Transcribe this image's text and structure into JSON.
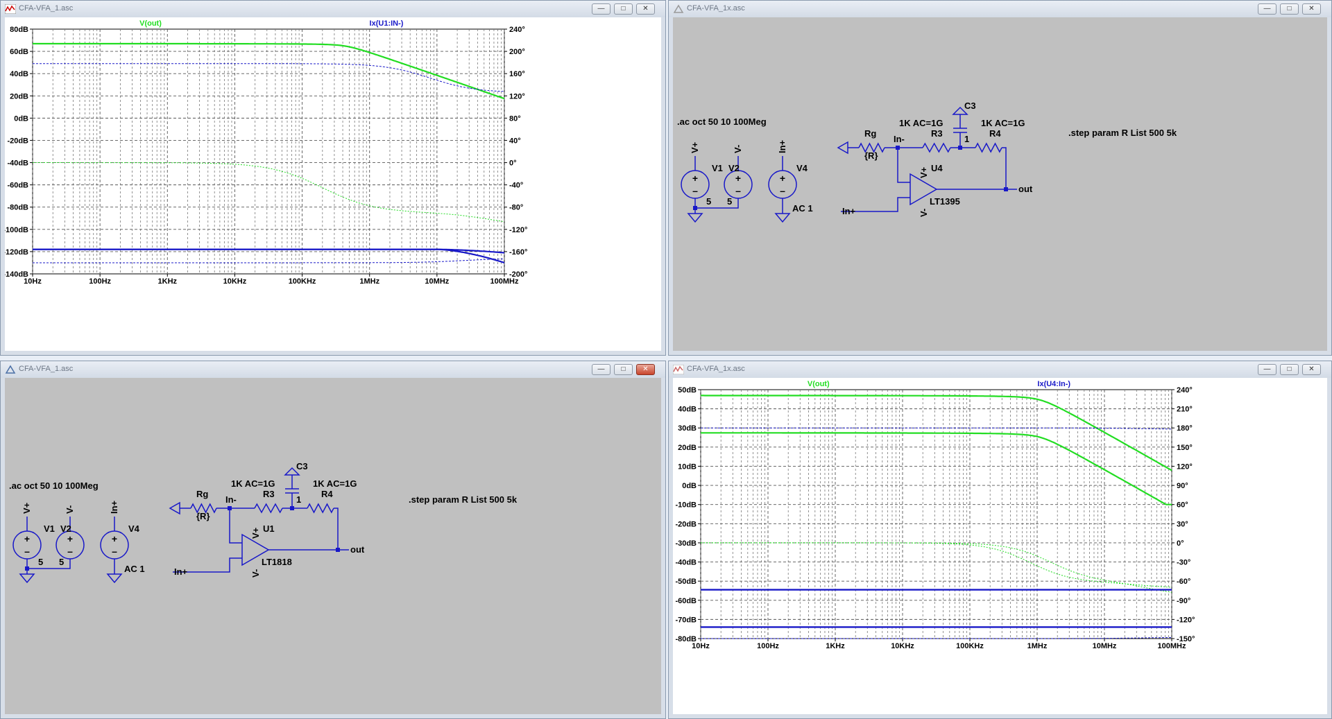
{
  "windows": {
    "top_left": {
      "title": "CFA-VFA_1.asc"
    },
    "top_right": {
      "title": "CFA-VFA_1x.asc"
    },
    "bottom_left": {
      "title": "CFA-VFA_1.asc"
    },
    "bottom_right": {
      "title": "CFA-VFA_1x.asc"
    }
  },
  "plot1": {
    "trace_vout": "V(out)",
    "trace_ix": "Ix(U1:IN-)",
    "y_labels": [
      "80dB",
      "60dB",
      "40dB",
      "20dB",
      "0dB",
      "-20dB",
      "-40dB",
      "-60dB",
      "-80dB",
      "-100dB",
      "-120dB",
      "-140dB"
    ],
    "phase_labels": [
      "240°",
      "200°",
      "160°",
      "120°",
      "80°",
      "40°",
      "0°",
      "-40°",
      "-80°",
      "-120°",
      "-160°",
      "-200°"
    ],
    "x_labels": [
      "10Hz",
      "100Hz",
      "1KHz",
      "10KHz",
      "100KHz",
      "1MHz",
      "10MHz",
      "100MHz"
    ],
    "ylim": [
      -140,
      80
    ],
    "phase_lim": [
      -200,
      240
    ]
  },
  "plot2": {
    "trace_vout": "V(out)",
    "trace_ix": "Ix(U4:In-)",
    "y_labels": [
      "50dB",
      "40dB",
      "30dB",
      "20dB",
      "10dB",
      "0dB",
      "-10dB",
      "-20dB",
      "-30dB",
      "-40dB",
      "-50dB",
      "-60dB",
      "-70dB",
      "-80dB"
    ],
    "phase_labels": [
      "240°",
      "210°",
      "180°",
      "150°",
      "120°",
      "90°",
      "60°",
      "30°",
      "0°",
      "-30°",
      "-60°",
      "-90°",
      "-120°",
      "-150°"
    ],
    "x_labels": [
      "10Hz",
      "100Hz",
      "1KHz",
      "10KHz",
      "100KHz",
      "1MHz",
      "10MHz",
      "100MHz"
    ],
    "ylim": [
      -80,
      50
    ],
    "phase_lim": [
      -150,
      240
    ]
  },
  "schem_top": {
    "ac": ".ac oct 50 10 100Meg",
    "step": ".step param R List 500 5k",
    "v1": "V1",
    "v2": "V2",
    "v4": "V4",
    "v1_val": "5",
    "v2_val": "5",
    "v4_val": "AC 1",
    "vplus": "V+",
    "vminus": "V-",
    "inplus": "In+",
    "rg": "Rg",
    "rg_val": "{R}",
    "inminus_net": "In-",
    "r3": "R3",
    "r3_val": "1K AC=1G",
    "r4": "R4",
    "r4_val": "1K AC=1G",
    "c3": "C3",
    "c3_val": "1",
    "u": "U4",
    "u_model": "LT1395",
    "out": "out",
    "in_plus_net": "In+"
  },
  "schem_bottom": {
    "ac": ".ac oct 50 10 100Meg",
    "step": ".step param R List 500 5k",
    "v1": "V1",
    "v2": "V2",
    "v4": "V4",
    "v1_val": "5",
    "v2_val": "5",
    "v4_val": "AC 1",
    "vplus": "V+",
    "vminus": "V-",
    "inplus": "In+",
    "rg": "Rg",
    "rg_val": "{R}",
    "inminus_net": "In-",
    "r3": "R3",
    "r3_val": "1K AC=1G",
    "r4": "R4",
    "r4_val": "1K AC=1G",
    "c3": "C3",
    "c3_val": "1",
    "u": "U1",
    "u_model": "LT1818",
    "out": "out",
    "in_plus_net": "In+"
  },
  "colors": {
    "green": "#22dd22",
    "blue": "#1818c8",
    "wire": "#1818c8",
    "text": "#000000"
  }
}
